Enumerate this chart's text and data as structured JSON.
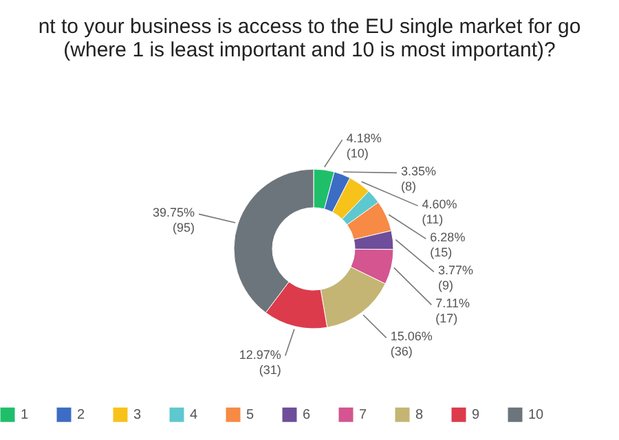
{
  "chart_data": {
    "type": "donut",
    "title": [
      "nt to your business is access to the EU single market for go",
      "(where 1 is least important and 10 is most important)?"
    ],
    "categories": [
      "1",
      "2",
      "3",
      "4",
      "5",
      "6",
      "7",
      "8",
      "9",
      "10"
    ],
    "values": [
      4.18,
      3.35,
      4.6,
      2.93,
      6.28,
      3.77,
      7.11,
      15.06,
      12.97,
      39.75
    ],
    "colors": [
      "#1fbf6a",
      "#3d6cc4",
      "#f7c21a",
      "#5ec8cf",
      "#f78a44",
      "#6e4e9a",
      "#d4558f",
      "#c4b574",
      "#dc3b4c",
      "#6c757b"
    ],
    "value_labels": [
      "4.18%\n(10)",
      "3.35%\n(8)",
      "4.60%\n(11)",
      null,
      "6.28%\n(15)",
      "3.77%\n(9)",
      "7.11%\n(17)",
      "15.06%\n(36)",
      "12.97%\n(31)",
      "39.75%\n(95)"
    ],
    "legend": "bottom"
  }
}
